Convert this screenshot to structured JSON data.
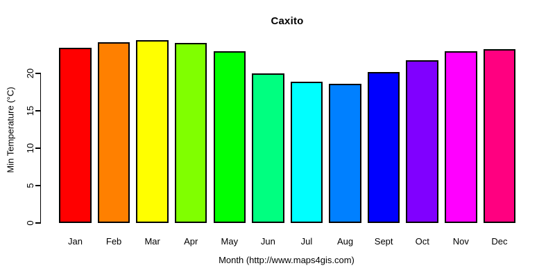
{
  "chart_data": {
    "type": "bar",
    "title": "Caxito",
    "xlabel": "Month (http://www.maps4gis.com)",
    "ylabel": "Min Temperature (°C)",
    "categories": [
      "Jan",
      "Feb",
      "Mar",
      "Apr",
      "May",
      "Jun",
      "Jul",
      "Aug",
      "Sept",
      "Oct",
      "Nov",
      "Dec"
    ],
    "values": [
      23.4,
      24.2,
      24.4,
      24.1,
      23.0,
      20.0,
      18.9,
      18.6,
      20.2,
      21.8,
      23.0,
      23.2
    ],
    "bar_colors": [
      "#FF0000",
      "#FF8000",
      "#FFFF00",
      "#80FF00",
      "#00FF00",
      "#00FF80",
      "#00FFFF",
      "#0080FF",
      "#0000FF",
      "#8000FF",
      "#FF00FF",
      "#FF0080"
    ],
    "bar_border_color": "#000000",
    "text_color": "#000000",
    "background": "#FFFFFF",
    "yticks": [
      0,
      5,
      10,
      15,
      20
    ],
    "ylim": [
      0,
      25
    ],
    "grid": false,
    "legend": "none"
  }
}
